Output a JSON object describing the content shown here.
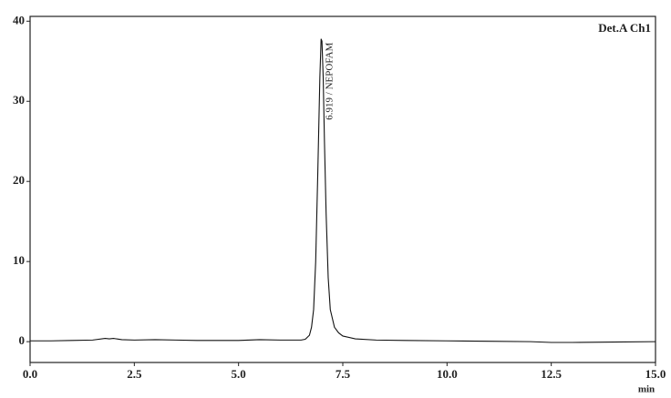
{
  "chart_data": {
    "type": "line",
    "annotation": "6.919 / NEPOFAM",
    "legend": "Det.A Ch1",
    "x_label": "min",
    "color": "#111111",
    "xlim": [
      0,
      15
    ],
    "ylim": [
      -2.6,
      40.6
    ],
    "xticks": [
      {
        "value": 0,
        "label": "0.0"
      },
      2.5,
      {
        "value": 5,
        "label": "5.0"
      },
      7.5,
      {
        "value": 10,
        "label": "10.0"
      },
      12.5,
      {
        "value": 15,
        "label": "15.0"
      }
    ],
    "yticks": [
      0,
      10,
      20,
      30,
      40
    ],
    "x": [
      0,
      0.5,
      1.0,
      1.5,
      1.8,
      1.9,
      2.0,
      2.2,
      2.5,
      3.0,
      3.5,
      4.0,
      5.0,
      5.5,
      6.0,
      6.5,
      6.6,
      6.7,
      6.75,
      6.8,
      6.85,
      6.9,
      6.95,
      6.98,
      7.0,
      7.03,
      7.06,
      7.1,
      7.15,
      7.2,
      7.3,
      7.4,
      7.5,
      7.8,
      8.3,
      9.0,
      10.0,
      11.0,
      12.0,
      12.5,
      13.0,
      14.0,
      15.0
    ],
    "values": [
      0.1,
      0.1,
      0.15,
      0.2,
      0.4,
      0.35,
      0.4,
      0.25,
      0.2,
      0.25,
      0.2,
      0.15,
      0.15,
      0.25,
      0.2,
      0.2,
      0.3,
      0.8,
      1.8,
      4,
      10,
      21,
      33,
      37.8,
      37.5,
      33,
      25,
      16,
      8,
      4,
      1.8,
      1.1,
      0.7,
      0.35,
      0.2,
      0.15,
      0.1,
      0.05,
      0.0,
      -0.1,
      -0.1,
      -0.05,
      0.0
    ]
  }
}
